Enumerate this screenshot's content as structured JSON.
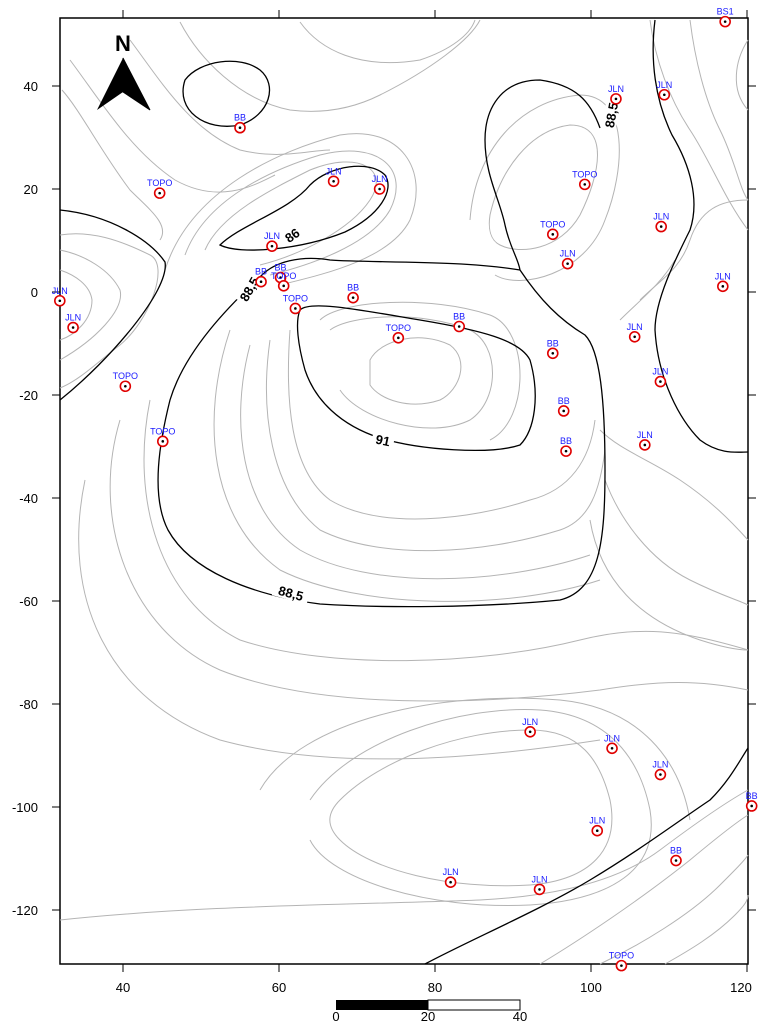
{
  "map": {
    "north_label": "N",
    "x_ticks": [
      "40",
      "60",
      "80",
      "100",
      "120"
    ],
    "y_ticks": [
      "40",
      "20",
      "0",
      "-20",
      "-40",
      "-60",
      "-80",
      "-100",
      "-120"
    ],
    "contour_labels": [
      "86",
      "88,5",
      "88,5",
      "91",
      "88,5"
    ],
    "scale": {
      "labels": [
        "0",
        "20",
        "40"
      ]
    },
    "colors": {
      "contour_minor": "#b0b0b0",
      "contour_major": "#000000",
      "point_ring": "#e00000",
      "point_label": "#1a1aff"
    }
  },
  "points": [
    {
      "label": "BS1",
      "x": 117.2,
      "y": 52.5
    },
    {
      "label": "JLN",
      "x": 103.2,
      "y": 37.5
    },
    {
      "label": "JLN",
      "x": 109.4,
      "y": 38.3
    },
    {
      "label": "BB",
      "x": 55.0,
      "y": 31.9
    },
    {
      "label": "TOPO",
      "x": 44.7,
      "y": 19.2
    },
    {
      "label": "JLN",
      "x": 67.0,
      "y": 21.5
    },
    {
      "label": "JLN",
      "x": 72.9,
      "y": 20.0
    },
    {
      "label": "TOPO",
      "x": 99.2,
      "y": 20.9
    },
    {
      "label": "TOPO",
      "x": 95.1,
      "y": 11.2
    },
    {
      "label": "JLN",
      "x": 109.0,
      "y": 12.7
    },
    {
      "label": "JLN",
      "x": 59.1,
      "y": 8.9
    },
    {
      "label": "JLN",
      "x": 97.0,
      "y": 5.5
    },
    {
      "label": "BB",
      "x": 57.7,
      "y": 2.0
    },
    {
      "label": "BB",
      "x": 60.2,
      "y": 2.8
    },
    {
      "label": "TOPO",
      "x": 60.6,
      "y": 1.2
    },
    {
      "label": "JLN",
      "x": 116.9,
      "y": 1.1
    },
    {
      "label": "JLN",
      "x": 31.9,
      "y": -1.7
    },
    {
      "label": "BB",
      "x": 69.5,
      "y": -1.1
    },
    {
      "label": "TOPO",
      "x": 62.1,
      "y": -3.2
    },
    {
      "label": "JLN",
      "x": 33.6,
      "y": -6.9
    },
    {
      "label": "BB",
      "x": 83.1,
      "y": -6.7
    },
    {
      "label": "TOPO",
      "x": 75.3,
      "y": -8.9
    },
    {
      "label": "JLN",
      "x": 105.6,
      "y": -8.7
    },
    {
      "label": "BB",
      "x": 95.1,
      "y": -11.9
    },
    {
      "label": "JLN",
      "x": 108.9,
      "y": -17.4
    },
    {
      "label": "TOPO",
      "x": 40.3,
      "y": -18.3
    },
    {
      "label": "BB",
      "x": 96.5,
      "y": -23.1
    },
    {
      "label": "TOPO",
      "x": 45.1,
      "y": -29.0
    },
    {
      "label": "JLN",
      "x": 106.9,
      "y": -29.7
    },
    {
      "label": "BB",
      "x": 96.8,
      "y": -30.9
    },
    {
      "label": "JLN",
      "x": 92.2,
      "y": -85.4
    },
    {
      "label": "JLN",
      "x": 102.7,
      "y": -88.6
    },
    {
      "label": "JLN",
      "x": 108.9,
      "y": -93.7
    },
    {
      "label": "BB",
      "x": 120.6,
      "y": -99.8
    },
    {
      "label": "JLN",
      "x": 100.8,
      "y": -104.6
    },
    {
      "label": "BB",
      "x": 110.9,
      "y": -110.4
    },
    {
      "label": "JLN",
      "x": 82.0,
      "y": -114.6
    },
    {
      "label": "JLN",
      "x": 93.4,
      "y": -116.0
    },
    {
      "label": "TOPO",
      "x": 103.9,
      "y": -130.8
    }
  ]
}
